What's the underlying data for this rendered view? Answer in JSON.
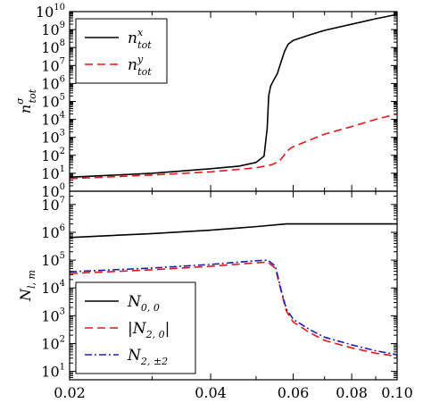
{
  "chart_data": [
    {
      "type": "line",
      "xscale": "log",
      "yscale": "log",
      "xlim": [
        0.02,
        0.1
      ],
      "ylim": [
        1,
        10000000000
      ],
      "ylabel": {
        "base": "n",
        "sup": "σ",
        "sub": "tot"
      },
      "yticks": [
        {
          "value": 1,
          "base": "10",
          "exp": "0"
        },
        {
          "value": 10,
          "base": "10",
          "exp": "1"
        },
        {
          "value": 100,
          "base": "10",
          "exp": "2"
        },
        {
          "value": 1000,
          "base": "10",
          "exp": "3"
        },
        {
          "value": 10000,
          "base": "10",
          "exp": "4"
        },
        {
          "value": 100000,
          "base": "10",
          "exp": "5"
        },
        {
          "value": 1000000,
          "base": "10",
          "exp": "6"
        },
        {
          "value": 10000000,
          "base": "10",
          "exp": "7"
        },
        {
          "value": 100000000,
          "base": "10",
          "exp": "8"
        },
        {
          "value": 1000000000,
          "base": "10",
          "exp": "9"
        },
        {
          "value": 10000000000,
          "base": "10",
          "exp": "10"
        }
      ],
      "legend_position": "upper-left",
      "series": [
        {
          "name": {
            "base": "n",
            "sup": "x",
            "sub": "tot"
          },
          "color": "#000000",
          "style": "solid",
          "x": [
            0.02,
            0.03,
            0.04,
            0.046,
            0.05,
            0.052,
            0.0528,
            0.0532,
            0.0537,
            0.0545,
            0.0555,
            0.0565,
            0.0575,
            0.0585,
            0.06,
            0.065,
            0.07,
            0.08,
            0.09,
            0.1
          ],
          "y": [
            6,
            10,
            18,
            25,
            40,
            90,
            3000,
            200000,
            700000,
            1500000,
            3500000,
            15000000,
            60000000,
            150000000,
            250000000,
            500000000,
            900000000,
            2000000000,
            4000000000,
            7000000000
          ]
        },
        {
          "name": {
            "base": "n",
            "sup": "y",
            "sub": "tot"
          },
          "color": "#e31a1c",
          "style": "dashed",
          "x": [
            0.02,
            0.03,
            0.04,
            0.05,
            0.054,
            0.056,
            0.057,
            0.058,
            0.059,
            0.06,
            0.065,
            0.07,
            0.08,
            0.09,
            0.1
          ],
          "y": [
            5,
            8,
            12,
            20,
            30,
            45,
            80,
            150,
            230,
            300,
            700,
            1500,
            4000,
            10000,
            20000
          ]
        }
      ]
    },
    {
      "type": "line",
      "xscale": "log",
      "yscale": "log",
      "xlim": [
        0.02,
        0.1
      ],
      "ylim": [
        5,
        30000000
      ],
      "ylabel": {
        "base": "N",
        "sub": "l, m"
      },
      "yticks": [
        {
          "value": 10,
          "base": "10",
          "exp": "1"
        },
        {
          "value": 100,
          "base": "10",
          "exp": "2"
        },
        {
          "value": 1000,
          "base": "10",
          "exp": "3"
        },
        {
          "value": 10000,
          "base": "10",
          "exp": "4"
        },
        {
          "value": 100000,
          "base": "10",
          "exp": "5"
        },
        {
          "value": 1000000,
          "base": "10",
          "exp": "6"
        },
        {
          "value": 10000000,
          "base": "10",
          "exp": "7"
        }
      ],
      "xticks": [
        {
          "value": 0.02,
          "label": "0.02"
        },
        {
          "value": 0.04,
          "label": "0.04"
        },
        {
          "value": 0.06,
          "label": "0.06"
        },
        {
          "value": 0.08,
          "label": "0.08"
        },
        {
          "value": 0.1,
          "label": "0.10"
        }
      ],
      "legend_position": "lower-left",
      "series": [
        {
          "name": {
            "pre": "",
            "base": "N",
            "sub": "0, 0",
            "post": ""
          },
          "color": "#000000",
          "style": "solid",
          "x": [
            0.02,
            0.03,
            0.04,
            0.05,
            0.058,
            0.06,
            0.07,
            0.08,
            0.09,
            0.1
          ],
          "y": [
            650000,
            900000,
            1200000,
            1600000,
            2000000,
            2000000,
            2000000,
            2000000,
            2000000,
            2000000
          ]
        },
        {
          "name": {
            "pre": "|",
            "base": "N",
            "sub": "2, 0",
            "post": "|"
          },
          "color": "#e31a1c",
          "style": "dashed",
          "x": [
            0.02,
            0.03,
            0.04,
            0.05,
            0.053,
            0.055,
            0.0565,
            0.058,
            0.06,
            0.065,
            0.07,
            0.08,
            0.09,
            0.1
          ],
          "y": [
            33000,
            45000,
            60000,
            80000,
            85000,
            50000,
            8000,
            1500,
            600,
            250,
            130,
            70,
            45,
            35
          ]
        },
        {
          "name": {
            "pre": "",
            "base": "N",
            "sub": "2, ±2",
            "post": ""
          },
          "color": "#1f1fb4",
          "style": "dashdot",
          "x": [
            0.02,
            0.03,
            0.04,
            0.05,
            0.053,
            0.055,
            0.0565,
            0.058,
            0.06,
            0.065,
            0.07,
            0.08,
            0.09,
            0.1
          ],
          "y": [
            38000,
            52000,
            70000,
            95000,
            100000,
            60000,
            9000,
            1800,
            750,
            320,
            170,
            90,
            55,
            40
          ]
        }
      ]
    }
  ]
}
